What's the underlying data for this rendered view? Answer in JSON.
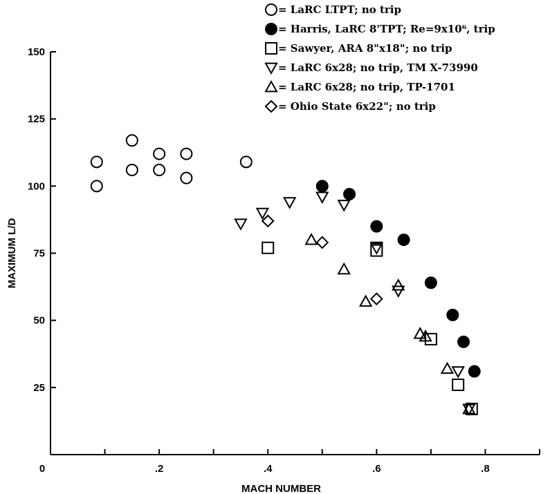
{
  "chart_data": {
    "type": "scatter",
    "title": "",
    "xlabel": "MACH NUMBER",
    "ylabel": "MAXIMUM L/D",
    "xlim": [
      0,
      0.9
    ],
    "ylim": [
      0,
      150
    ],
    "x_ticks": [
      0,
      0.1,
      0.2,
      0.3,
      0.4,
      0.5,
      0.6,
      0.7,
      0.8,
      0.9
    ],
    "x_tick_labels": [
      "0",
      "",
      ".2",
      "",
      ".4",
      "",
      ".6",
      "",
      ".8",
      ""
    ],
    "y_ticks": [
      0,
      25,
      50,
      75,
      100,
      125,
      150
    ],
    "y_tick_labels": [
      "0",
      "25",
      "50",
      "75",
      "100",
      "125",
      "150"
    ],
    "grid": false,
    "legend_position": "top-right",
    "series": [
      {
        "name": "= LaRC LTPT; no trip",
        "marker": "circle-open",
        "points": [
          [
            0.085,
            109
          ],
          [
            0.085,
            100
          ],
          [
            0.15,
            117
          ],
          [
            0.15,
            106
          ],
          [
            0.2,
            112
          ],
          [
            0.2,
            106
          ],
          [
            0.25,
            112
          ],
          [
            0.25,
            103
          ],
          [
            0.36,
            109
          ]
        ]
      },
      {
        "name": "= Harris, LaRC 8'TPT; Re=9x10⁶, trip",
        "marker": "circle-filled",
        "points": [
          [
            0.5,
            100
          ],
          [
            0.55,
            97
          ],
          [
            0.6,
            85
          ],
          [
            0.65,
            80
          ],
          [
            0.7,
            64
          ],
          [
            0.74,
            52
          ],
          [
            0.76,
            42
          ],
          [
            0.78,
            31
          ]
        ]
      },
      {
        "name": "= Sawyer, ARA 8\"x18\"; no trip",
        "marker": "square-open",
        "points": [
          [
            0.4,
            77
          ],
          [
            0.6,
            77
          ],
          [
            0.6,
            76
          ],
          [
            0.7,
            43
          ],
          [
            0.75,
            26
          ],
          [
            0.775,
            17
          ]
        ]
      },
      {
        "name": "= LaRC 6x28; no trip, TM X-73990",
        "marker": "triangle-down-open",
        "points": [
          [
            0.35,
            86
          ],
          [
            0.39,
            90
          ],
          [
            0.44,
            94
          ],
          [
            0.5,
            96
          ],
          [
            0.54,
            93
          ],
          [
            0.6,
            77
          ],
          [
            0.64,
            61
          ],
          [
            0.75,
            31
          ],
          [
            0.77,
            17
          ]
        ]
      },
      {
        "name": "= LaRC 6x28; no trip, TP-1701",
        "marker": "triangle-up-open",
        "points": [
          [
            0.48,
            80
          ],
          [
            0.54,
            69
          ],
          [
            0.58,
            57
          ],
          [
            0.64,
            63
          ],
          [
            0.68,
            45
          ],
          [
            0.69,
            44
          ],
          [
            0.73,
            32
          ],
          [
            0.77,
            17
          ]
        ]
      },
      {
        "name": "= Ohio State 6x22\"; no trip",
        "marker": "diamond-open",
        "points": [
          [
            0.4,
            87
          ],
          [
            0.5,
            79
          ],
          [
            0.6,
            58
          ]
        ]
      }
    ]
  }
}
